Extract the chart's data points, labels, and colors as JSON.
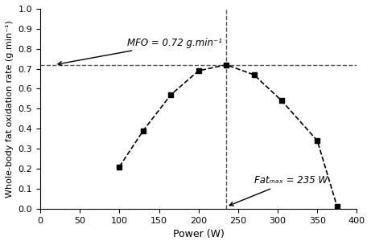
{
  "x": [
    100,
    130,
    165,
    200,
    235,
    270,
    305,
    350,
    375
  ],
  "y": [
    0.21,
    0.39,
    0.57,
    0.69,
    0.72,
    0.67,
    0.54,
    0.34,
    0.01
  ],
  "mfo_value": 0.72,
  "fatmax_value": 235,
  "xlabel": "Power (W)",
  "ylabel": "Whole-body fat oxidation rate (g.min⁻¹)",
  "xlim": [
    0,
    400
  ],
  "ylim": [
    0.0,
    1.0
  ],
  "xticks": [
    0,
    50,
    100,
    150,
    200,
    250,
    300,
    350,
    400
  ],
  "yticks": [
    0.0,
    0.1,
    0.2,
    0.3,
    0.4,
    0.5,
    0.6,
    0.7,
    0.8,
    0.9,
    1.0
  ],
  "mfo_annotation": "MFO = 0.72 g.min⁻¹",
  "fatmax_annotation": "Fatₘₐₓ = 235 W",
  "line_color": "#000000",
  "marker_color": "#000000",
  "hline_color": "#555555",
  "vline_color": "#555555"
}
